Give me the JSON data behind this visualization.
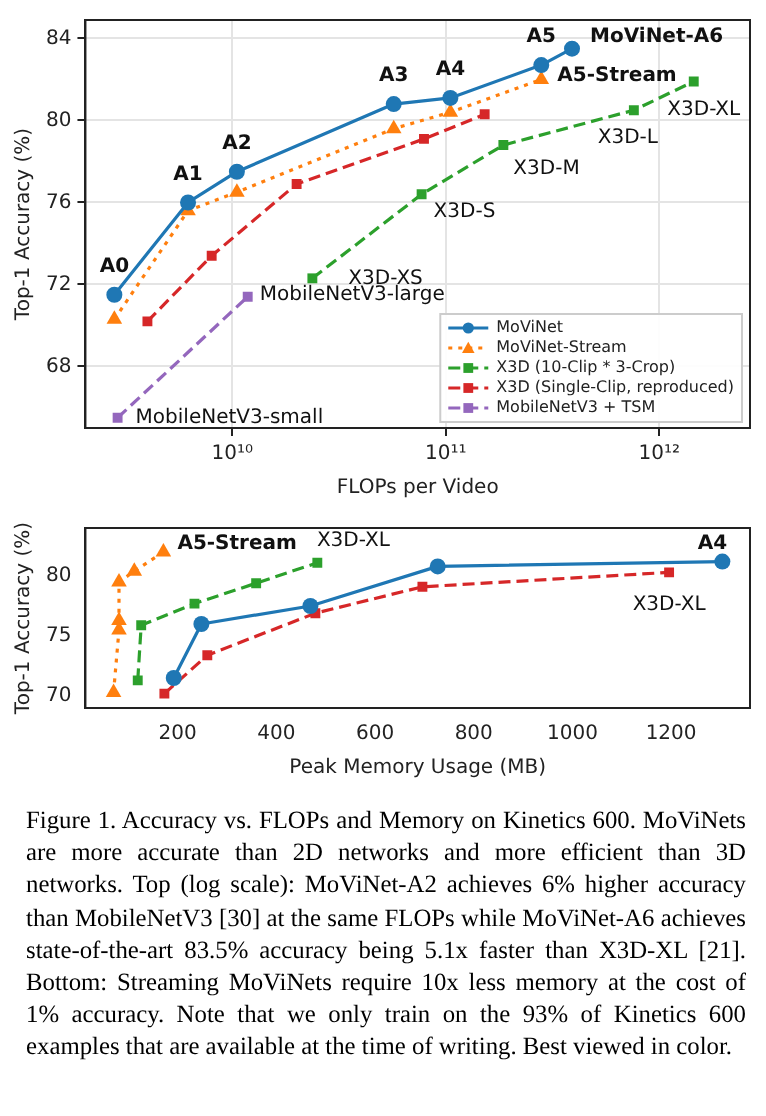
{
  "chart_data": [
    {
      "type": "line",
      "xlabel": "FLOPs per Video",
      "ylabel": "Top-1 Accuracy (%)",
      "log": "x",
      "xlim": [
        2050000000.0,
        2660000000000.0
      ],
      "xticks": [
        {
          "value": 10000000000.0,
          "label": "10¹⁰"
        },
        {
          "value": 100000000000.0,
          "label": "10¹¹"
        },
        {
          "value": 1000000000000.0,
          "label": "10¹²"
        }
      ],
      "ylim": [
        65,
        84.9
      ],
      "yticks": [
        68,
        72,
        76,
        80,
        84
      ],
      "grid": true,
      "legend": "bottom right",
      "series": [
        {
          "name": "MoViNet",
          "color": "#1f77b4",
          "marker": "circle",
          "line_style": "solid",
          "x": [
            2800000000.0,
            6200000000.0,
            10500000000.0,
            57000000000.0,
            105000000000.0,
            280000000000.0,
            390000000000.0
          ],
          "values": [
            71.5,
            76.0,
            77.5,
            80.8,
            81.1,
            82.7,
            83.5
          ]
        },
        {
          "name": "MoViNet-Stream",
          "color": "#ff7f0e",
          "marker": "triangle",
          "line_style": "dotted",
          "x": [
            2800000000.0,
            6200000000.0,
            10500000000.0,
            57000000000.0,
            105000000000.0,
            280000000000.0
          ],
          "values": [
            70.3,
            75.6,
            76.5,
            79.6,
            80.4,
            82.0
          ]
        },
        {
          "name": "X3D (10-Clip * 3-Crop)",
          "color": "#2ca02c",
          "marker": "square",
          "line_style": "dashed",
          "x": [
            23700000000.0,
            77000000000.0,
            186000000000.0,
            760000000000.0,
            1450000000000.0
          ],
          "values": [
            72.3,
            76.4,
            78.8,
            80.5,
            81.9
          ]
        },
        {
          "name": "X3D (Single-Clip, reproduced)",
          "color": "#d62728",
          "marker": "square",
          "line_style": "dashed",
          "x": [
            4000000000.0,
            8000000000.0,
            20000000000.0,
            79000000000.0,
            152000000000.0
          ],
          "values": [
            70.2,
            73.4,
            76.9,
            79.1,
            80.3
          ]
        },
        {
          "name": "MobileNetV3 + TSM",
          "color": "#9467bd",
          "marker": "square",
          "line_style": "dashed",
          "x": [
            2900000000.0,
            11800000000.0
          ],
          "values": [
            65.5,
            71.4
          ]
        }
      ],
      "annotations": [
        {
          "text": "A0",
          "x": 2800000000.0,
          "y": 71.5
        },
        {
          "text": "A1",
          "x": 6200000000.0,
          "y": 76.0
        },
        {
          "text": "A2",
          "x": 10500000000.0,
          "y": 77.5
        },
        {
          "text": "A3",
          "x": 57000000000.0,
          "y": 80.8
        },
        {
          "text": "A4",
          "x": 105000000000.0,
          "y": 81.1
        },
        {
          "text": "A5",
          "x": 280000000000.0,
          "y": 82.7
        },
        {
          "text": "MoViNet-A6",
          "x": 390000000000.0,
          "y": 83.5
        },
        {
          "text": "A5-Stream",
          "x": 280000000000.0,
          "y": 82.0
        },
        {
          "text": "X3D-XS",
          "x": 23700000000.0,
          "y": 72.3
        },
        {
          "text": "X3D-S",
          "x": 77000000000.0,
          "y": 76.4
        },
        {
          "text": "X3D-M",
          "x": 186000000000.0,
          "y": 78.8
        },
        {
          "text": "X3D-L",
          "x": 760000000000.0,
          "y": 80.5
        },
        {
          "text": "X3D-XL",
          "x": 1450000000000.0,
          "y": 81.9
        },
        {
          "text": "MobileNetV3-large",
          "x": 11800000000.0,
          "y": 71.4
        },
        {
          "text": "MobileNetV3-small",
          "x": 2900000000.0,
          "y": 65.5
        }
      ]
    },
    {
      "type": "line",
      "xlabel": "Peak Memory Usage (MB)",
      "ylabel": "Top-1 Accuracy (%)",
      "xlim": [
        13,
        1360
      ],
      "xticks": [
        200,
        400,
        600,
        800,
        1000,
        1200
      ],
      "ylim": [
        69,
        84
      ],
      "yticks": [
        70,
        75,
        80
      ],
      "series": [
        {
          "color": "#1f77b4",
          "marker": "circle",
          "line_style": "solid",
          "x": [
            192,
            248,
            469,
            727,
            1304
          ],
          "values": [
            71.5,
            76.0,
            77.5,
            80.8,
            81.2
          ]
        },
        {
          "color": "#ff7f0e",
          "marker": "triangle",
          "line_style": "dotted",
          "x": [
            70,
            81,
            81,
            81,
            112,
            171
          ],
          "values": [
            70.3,
            75.5,
            76.3,
            79.5,
            80.4,
            82.0
          ]
        },
        {
          "color": "#2ca02c",
          "marker": "square",
          "line_style": "dashed",
          "x": [
            119,
            126,
            234,
            359,
            483
          ],
          "values": [
            71.3,
            75.9,
            77.7,
            79.4,
            81.1
          ]
        },
        {
          "color": "#d62728",
          "marker": "square",
          "line_style": "dashed",
          "x": [
            173,
            260,
            479,
            696,
            1196
          ],
          "values": [
            70.2,
            73.4,
            76.9,
            79.1,
            80.3
          ]
        }
      ],
      "annotations": [
        {
          "text": "A5-Stream",
          "x": 171,
          "y": 82.0
        },
        {
          "text": "X3D-XL",
          "x": 483,
          "y": 81.1
        },
        {
          "text": "A4",
          "x": 1304,
          "y": 81.2
        },
        {
          "text": "X3D-XL",
          "x": 1196,
          "y": 80.3
        },
        "Figure 1. Accuracy vs. FLOPs and Memory on Kinetics 600. MoViNets are more accurate than 2D networks and more efficient than 3D networks. Top (log scale): MoViNet-A2 achieves 6% higher accuracy than MobileNetV3 [30] at the same FLOPs while MoViNet-A6 achieves state-of-the-art 83.5% accuracy being 5.1x faster than X3D-XL [21]. Bottom: Streaming MoViNets require 10x less memory at the cost of 1% accuracy. Note that we only train on the 93% of Kinetics 600 examples that are available at the time of writing. Best viewed in color."
      ]
    }
  ]
}
